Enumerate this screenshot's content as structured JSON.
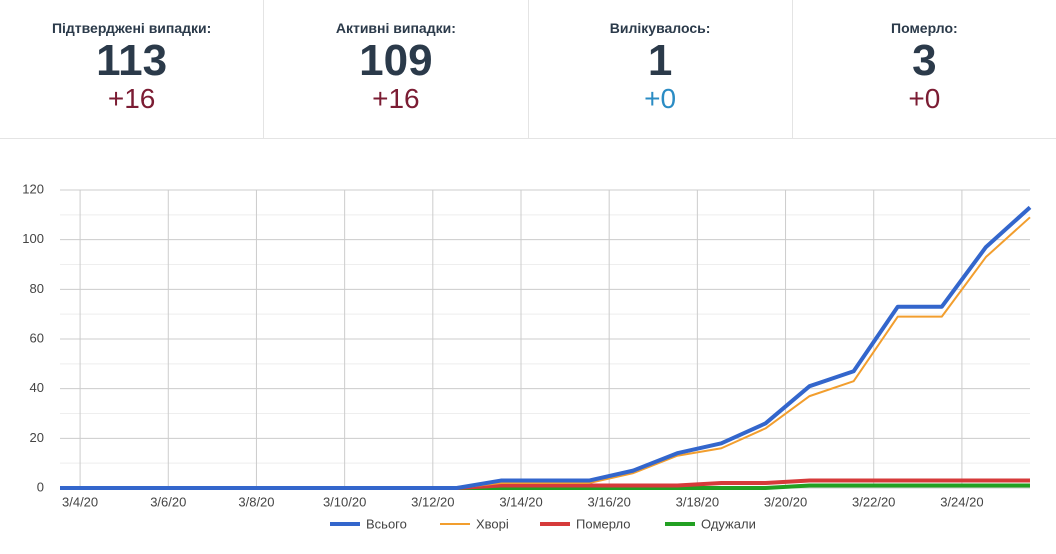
{
  "stats": [
    {
      "label": "Підтверджені випадки:",
      "value": 113,
      "delta": "+16",
      "delta_color": "#7b1c33"
    },
    {
      "label": "Активні випадки:",
      "value": 109,
      "delta": "+16",
      "delta_color": "#7b1c33"
    },
    {
      "label": "Вилікувалось:",
      "value": 1,
      "delta": "+0",
      "delta_color": "#2b8cc4"
    },
    {
      "label": "Померло:",
      "value": 3,
      "delta": "+0",
      "delta_color": "#7b1c33"
    }
  ],
  "chart_data": {
    "type": "line",
    "x": [
      "3/3/20",
      "3/4/20",
      "3/5/20",
      "3/6/20",
      "3/7/20",
      "3/8/20",
      "3/9/20",
      "3/10/20",
      "3/11/20",
      "3/12/20",
      "3/13/20",
      "3/14/20",
      "3/15/20",
      "3/16/20",
      "3/17/20",
      "3/18/20",
      "3/19/20",
      "3/20/20",
      "3/21/20",
      "3/22/20",
      "3/23/20",
      "3/24/20",
      "3/25/20"
    ],
    "xticks": [
      "3/4/20",
      "3/6/20",
      "3/8/20",
      "3/10/20",
      "3/12/20",
      "3/14/20",
      "3/16/20",
      "3/18/20",
      "3/20/20",
      "3/22/20",
      "3/24/20"
    ],
    "series": [
      {
        "name": "Всього",
        "color": "#3366cc",
        "width": 4,
        "values": [
          0,
          0,
          0,
          0,
          0,
          0,
          0,
          0,
          0,
          0,
          3,
          3,
          3,
          7,
          14,
          18,
          26,
          41,
          47,
          73,
          73,
          97,
          113
        ]
      },
      {
        "name": "Хворі",
        "color": "#f29e2e",
        "width": 2,
        "values": [
          0,
          0,
          0,
          0,
          0,
          0,
          0,
          0,
          0,
          0,
          2,
          2,
          2,
          6,
          13,
          16,
          24,
          37,
          43,
          69,
          69,
          93,
          109
        ]
      },
      {
        "name": "Померло",
        "color": "#d63a3a",
        "width": 4,
        "values": [
          0,
          0,
          0,
          0,
          0,
          0,
          0,
          0,
          0,
          0,
          1,
          1,
          1,
          1,
          1,
          2,
          2,
          3,
          3,
          3,
          3,
          3,
          3
        ]
      },
      {
        "name": "Одужали",
        "color": "#22a022",
        "width": 4,
        "values": [
          0,
          0,
          0,
          0,
          0,
          0,
          0,
          0,
          0,
          0,
          0,
          0,
          0,
          0,
          0,
          0,
          0,
          1,
          1,
          1,
          1,
          1,
          1
        ]
      }
    ],
    "ylim": [
      0,
      120
    ],
    "yticks": [
      0,
      20,
      40,
      60,
      80,
      100,
      120
    ],
    "grid": true,
    "minor_grid": true,
    "legend": "bottom"
  }
}
